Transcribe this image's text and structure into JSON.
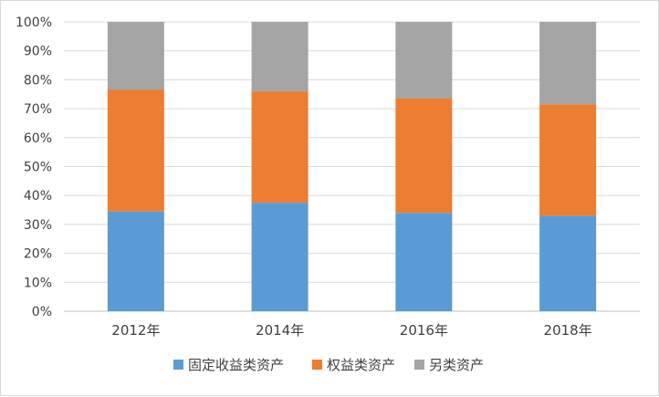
{
  "chart_data": {
    "type": "bar",
    "stacked": true,
    "percent": true,
    "categories": [
      "2012年",
      "2014年",
      "2016年",
      "2018年"
    ],
    "series": [
      {
        "name": "固定收益类资产",
        "color": "#5b9bd5",
        "values": [
          34.5,
          37.5,
          34,
          33
        ]
      },
      {
        "name": "权益类资产",
        "color": "#ed7d31",
        "values": [
          42,
          38.5,
          39.5,
          38.5
        ]
      },
      {
        "name": "另类资产",
        "color": "#a5a5a5",
        "values": [
          23.5,
          24,
          26.5,
          28.5
        ]
      }
    ],
    "yticks": [
      "0%",
      "10%",
      "20%",
      "30%",
      "40%",
      "50%",
      "60%",
      "70%",
      "80%",
      "90%",
      "100%"
    ],
    "ylim": [
      0,
      100
    ],
    "grid": true,
    "legend_position": "bottom"
  }
}
